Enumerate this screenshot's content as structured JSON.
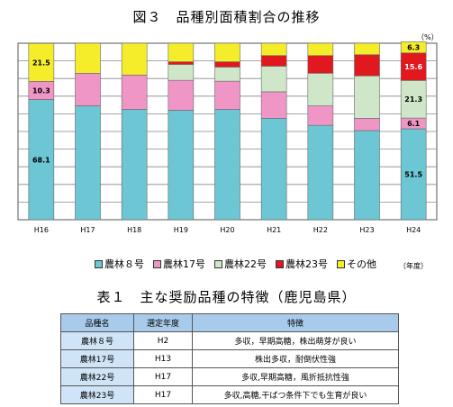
{
  "figure": {
    "title": "図３　品種別面積割合の推移",
    "unit_label": "（%）",
    "x_unit_label": "（年度）"
  },
  "chart_data": {
    "type": "bar",
    "stacked": true,
    "categories": [
      "H16",
      "H17",
      "H18",
      "H19",
      "H20",
      "H21",
      "H22",
      "H23",
      "H24"
    ],
    "ylim": [
      0,
      100
    ],
    "grid": true,
    "legend_position": "bottom",
    "series": [
      {
        "name": "農林８号",
        "color": "#6cc6d4",
        "values": [
          68.1,
          64.5,
          62.5,
          62,
          62.5,
          57.5,
          53.5,
          50.5,
          51.5
        ]
      },
      {
        "name": "農林17号",
        "color": "#ef96c6",
        "values": [
          10.3,
          18.5,
          19.5,
          17,
          16,
          15,
          11,
          7,
          6.1
        ]
      },
      {
        "name": "農林22号",
        "color": "#cfe7c8",
        "values": [
          0,
          0,
          0,
          9,
          8,
          14.5,
          18.5,
          24,
          21.3
        ]
      },
      {
        "name": "農林23号",
        "color": "#e1191e",
        "values": [
          0,
          0,
          0,
          1.5,
          3,
          6,
          10,
          12,
          15.6
        ]
      },
      {
        "name": "その他",
        "color": "#f6ed2a",
        "values": [
          21.5,
          17,
          18,
          10.5,
          10.5,
          7,
          7,
          6.5,
          6.3
        ]
      }
    ],
    "data_labels": [
      {
        "category": "H16",
        "series": "農林８号",
        "text": "68.1"
      },
      {
        "category": "H16",
        "series": "農林17号",
        "text": "10.3"
      },
      {
        "category": "H16",
        "series": "その他",
        "text": "21.5"
      },
      {
        "category": "H24",
        "series": "農林８号",
        "text": "51.5"
      },
      {
        "category": "H24",
        "series": "農林17号",
        "text": "6.1"
      },
      {
        "category": "H24",
        "series": "農林22号",
        "text": "21.3"
      },
      {
        "category": "H24",
        "series": "農林23号",
        "text": "15.6"
      },
      {
        "category": "H24",
        "series": "その他",
        "text": "6.3"
      }
    ]
  },
  "table": {
    "title": "表１　主な奨励品種の特徴（鹿児島県）",
    "headers": [
      "品種名",
      "選定年度",
      "特徴"
    ],
    "rows": [
      [
        "農林８号",
        "H2",
        "多収，早期高糖，株出萌芽が良い"
      ],
      [
        "農林17号",
        "H13",
        "株出多収，耐倒伏性強"
      ],
      [
        "農林22号",
        "H17",
        "多収,早期高糖，風折抵抗性強"
      ],
      [
        "農林23号",
        "H17",
        "多収,高糖,干ばつ条件下でも生育が良い"
      ]
    ]
  }
}
